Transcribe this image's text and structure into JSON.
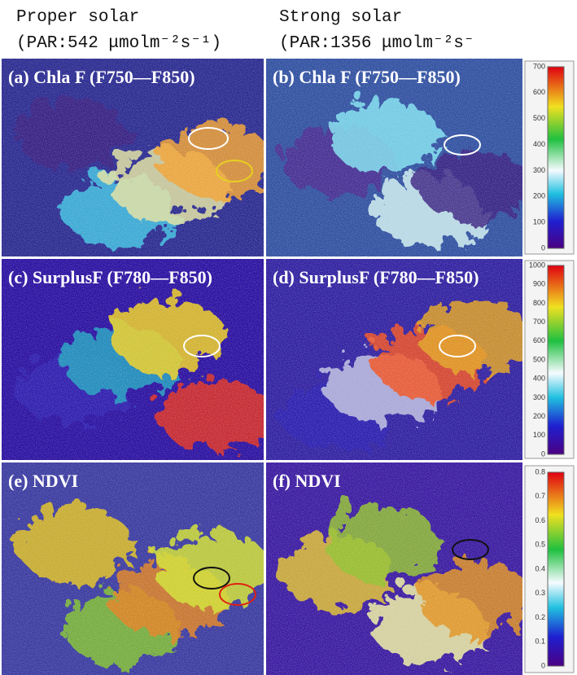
{
  "header": {
    "left": {
      "line1": "Proper solar",
      "line2": "(PAR:542 μmolm⁻²s⁻¹)"
    },
    "right": {
      "line1": "Strong solar",
      "line2": "(PAR:1356  μmolm⁻²s⁻"
    }
  },
  "panels": [
    {
      "label": "(a) Chla F (F750—F850)"
    },
    {
      "label": "(b) Chla F (F750—F850)"
    },
    {
      "label": "(c) SurplusF (F780—F850)"
    },
    {
      "label": "(d) SurplusF (F780—F850)"
    },
    {
      "label": "(e) NDVI"
    },
    {
      "label": "(f) NDVI"
    }
  ],
  "colorbars": [
    {
      "ticks": [
        "700",
        "600",
        "500",
        "400",
        "300",
        "200",
        "100",
        "0"
      ]
    },
    {
      "ticks": [
        "1000",
        "900",
        "800",
        "700",
        "600",
        "500",
        "400",
        "300",
        "200",
        "100",
        "0"
      ]
    },
    {
      "ticks": [
        "0.8",
        "0.7",
        "0.6",
        "0.5",
        "0.4",
        "0.3",
        "0.2",
        "0.1",
        "0"
      ]
    }
  ]
}
